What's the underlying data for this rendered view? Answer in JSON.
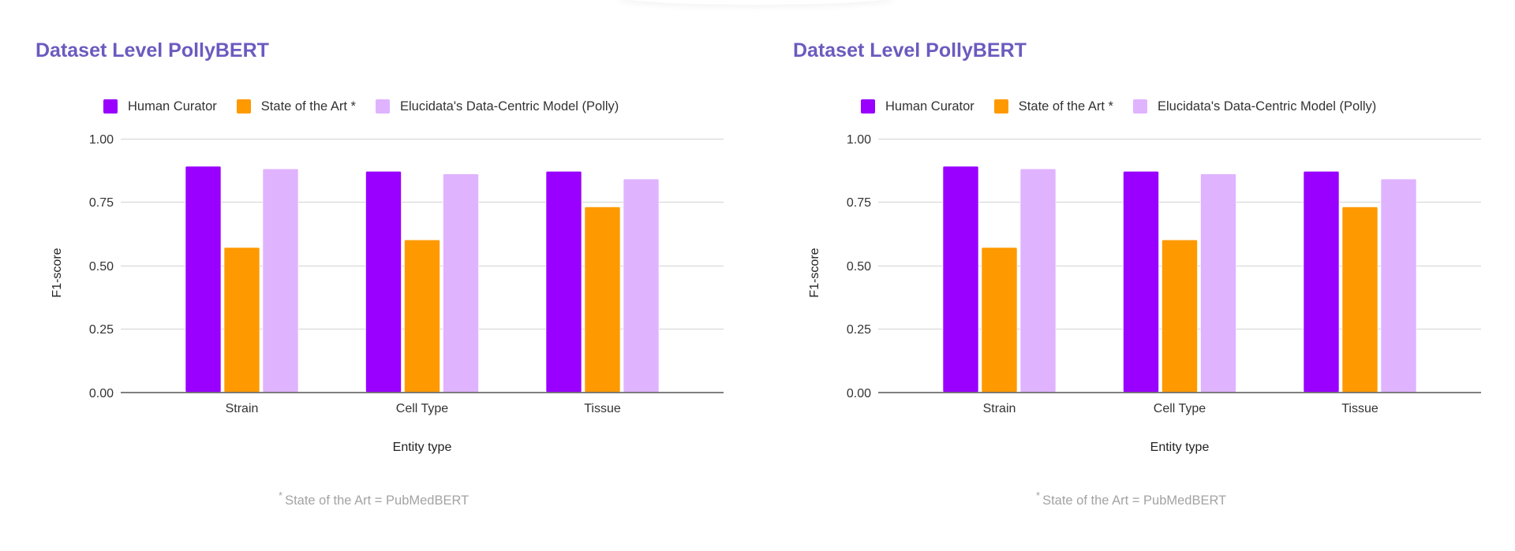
{
  "chart_data": [
    {
      "type": "bar",
      "title": "Dataset Level PollyBERT",
      "xlabel": "Entity type",
      "ylabel": "F1-score",
      "ylim": [
        0,
        1
      ],
      "yticks": [
        "0.00",
        "0.25",
        "0.50",
        "0.75",
        "1.00"
      ],
      "ytick_values": [
        0,
        0.25,
        0.5,
        0.75,
        1.0
      ],
      "grid": true,
      "legend_position": "top",
      "categories": [
        "Strain",
        "Cell Type",
        "Tissue"
      ],
      "series": [
        {
          "name": "Human Curator",
          "color": "#9900ff",
          "values": [
            0.89,
            0.87,
            0.87
          ]
        },
        {
          "name": "State of the Art *",
          "color": "#ff9900",
          "values": [
            0.57,
            0.6,
            0.73
          ]
        },
        {
          "name": "Elucidata's Data-Centric Model (Polly)",
          "color": "#e0b3ff",
          "values": [
            0.88,
            0.86,
            0.84
          ]
        }
      ],
      "footnote": {
        "star": "*",
        "text": "State of the Art = PubMedBERT"
      }
    },
    {
      "type": "bar",
      "title": "Dataset Level PollyBERT",
      "xlabel": "Entity type",
      "ylabel": "F1-score",
      "ylim": [
        0,
        1
      ],
      "yticks": [
        "0.00",
        "0.25",
        "0.50",
        "0.75",
        "1.00"
      ],
      "ytick_values": [
        0,
        0.25,
        0.5,
        0.75,
        1.0
      ],
      "grid": true,
      "legend_position": "top",
      "categories": [
        "Strain",
        "Cell Type",
        "Tissue"
      ],
      "series": [
        {
          "name": "Human Curator",
          "color": "#9900ff",
          "values": [
            0.89,
            0.87,
            0.87
          ]
        },
        {
          "name": "State of the Art *",
          "color": "#ff9900",
          "values": [
            0.57,
            0.6,
            0.73
          ]
        },
        {
          "name": "Elucidata's Data-Centric Model (Polly)",
          "color": "#e0b3ff",
          "values": [
            0.88,
            0.86,
            0.84
          ]
        }
      ],
      "footnote": {
        "star": "*",
        "text": "State of the Art = PubMedBERT"
      }
    }
  ],
  "colors": {
    "title": "#6b5bbf",
    "grid": "#d9d9d9",
    "axis": "#555555",
    "footnote": "#a3a3a3"
  }
}
